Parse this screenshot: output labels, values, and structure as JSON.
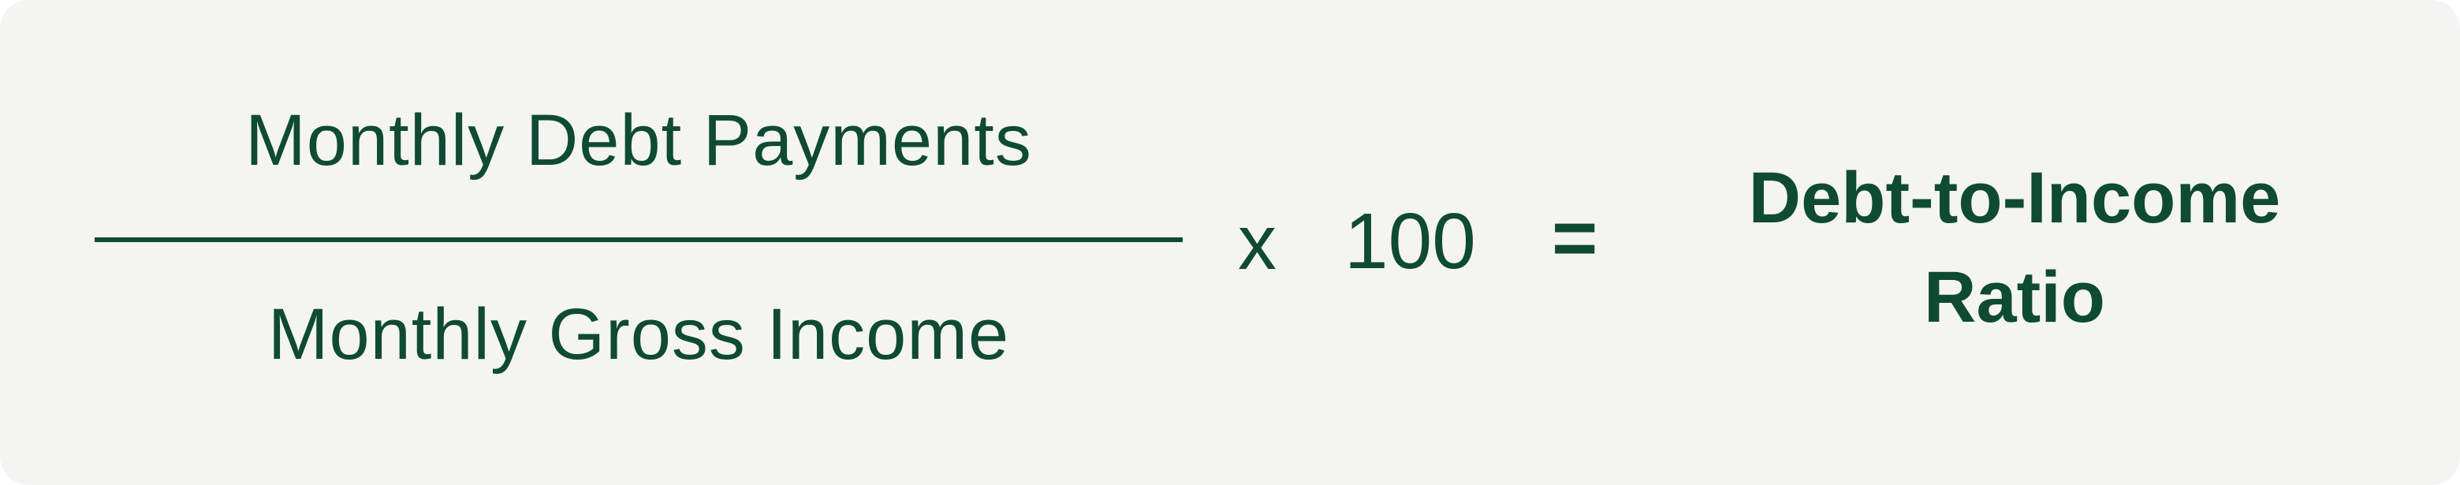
{
  "formula": {
    "numerator": "Monthly Debt Payments",
    "denominator": "Monthly Gross Income",
    "multiply_sign": "x",
    "multiplier": "100",
    "equals_sign": "=",
    "result_line_1": "Debt-to-Income",
    "result_line_2": "Ratio"
  },
  "colors": {
    "text": "#0f4a33",
    "background": "#f4f4f2"
  }
}
